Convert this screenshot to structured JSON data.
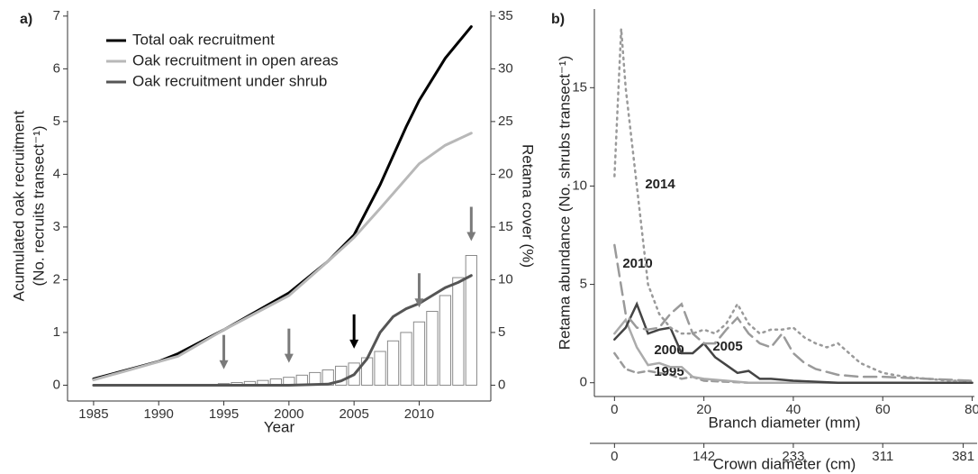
{
  "chart_data": [
    {
      "type": "line",
      "panel_label": "a)",
      "xlabel": "Year",
      "ylabel": [
        "Acumulated oak recruitment",
        "(No. recruits transect⁻¹)"
      ],
      "y2label": "Retama cover (%)",
      "xlim": [
        1983,
        2015.5
      ],
      "xticks": [
        1985,
        1990,
        1995,
        2000,
        2005,
        2010
      ],
      "ylim": [
        -0.3,
        7.1
      ],
      "yticks": [
        0,
        1,
        2,
        3,
        4,
        5,
        6,
        7
      ],
      "y2lim": [
        -1.5,
        35.5
      ],
      "y2ticks": [
        0,
        5,
        10,
        15,
        20,
        25,
        30,
        35
      ],
      "legend": "upper left",
      "series": [
        {
          "name": "Total oak recruitment",
          "color": "#000000",
          "x": [
            1985,
            1990,
            1991.5,
            1995,
            2000,
            2003,
            2005,
            2007,
            2009,
            2010,
            2012,
            2014
          ],
          "values": [
            0.12,
            0.45,
            0.6,
            1.05,
            1.75,
            2.35,
            2.85,
            3.8,
            4.9,
            5.4,
            6.2,
            6.8
          ]
        },
        {
          "name": "Oak recruitment in open areas",
          "color": "#b8b8b8",
          "x": [
            1985,
            1991.5,
            1995,
            2000,
            2003,
            2005,
            2007,
            2010,
            2012,
            2014
          ],
          "values": [
            0.1,
            0.55,
            1.05,
            1.7,
            2.35,
            2.8,
            3.35,
            4.2,
            4.55,
            4.78
          ]
        },
        {
          "name": "Oak recruitment under shrub",
          "color": "#555555",
          "x": [
            1985,
            2000,
            2003,
            2004,
            2005,
            2006,
            2007,
            2008,
            2009,
            2010,
            2011,
            2012,
            2013,
            2014
          ],
          "values": [
            0,
            0,
            0.02,
            0.08,
            0.2,
            0.5,
            1.0,
            1.3,
            1.45,
            1.55,
            1.7,
            1.85,
            1.95,
            2.08
          ]
        }
      ],
      "bars": {
        "axis": "y2",
        "color": "#ffffff",
        "edgecolor": "#8a8a8a",
        "x": [
          1995,
          1996,
          1997,
          1998,
          1999,
          2000,
          2001,
          2002,
          2003,
          2004,
          2005,
          2006,
          2007,
          2008,
          2009,
          2010,
          2011,
          2012,
          2013,
          2014
        ],
        "values": [
          0.15,
          0.25,
          0.35,
          0.45,
          0.6,
          0.75,
          0.95,
          1.2,
          1.45,
          1.8,
          2.1,
          2.6,
          3.2,
          4.2,
          5.0,
          6.0,
          7.0,
          8.5,
          10.2,
          12.3
        ]
      },
      "arrow_years": [
        1995,
        2000,
        2005,
        2010,
        2014
      ],
      "arrow_colors": [
        "#7a7a7a",
        "#7a7a7a",
        "#000000",
        "#7a7a7a",
        "#7a7a7a"
      ]
    },
    {
      "type": "line",
      "panel_label": "b)",
      "xlabel": "Branch diameter (mm)",
      "x2label": "Crown diameter (cm)",
      "ylabel": "Retama abundance (No. shrubs transect⁻¹)",
      "xlim": [
        -4.5,
        80.5
      ],
      "xticks": [
        0,
        20,
        40,
        60,
        80
      ],
      "x2ticks": [
        {
          "value": 0,
          "label": "0"
        },
        {
          "value": 20,
          "label": "142"
        },
        {
          "value": 40,
          "label": "233"
        },
        {
          "value": 60,
          "label": "311"
        },
        {
          "value": 78,
          "label": "381"
        }
      ],
      "ylim": [
        -0.7,
        19
      ],
      "yticks": [
        0,
        5,
        10,
        15
      ],
      "series": [
        {
          "name": "1995",
          "color": "#9a9a9a",
          "linestyle": "dashed",
          "x": [
            0,
            2.5,
            5,
            7.5,
            10,
            12.5,
            15,
            17.5,
            20,
            25,
            30,
            80
          ],
          "values": [
            1.5,
            0.7,
            0.5,
            0.6,
            0.5,
            0.4,
            0.2,
            0.3,
            0.1,
            0.05,
            0,
            0
          ]
        },
        {
          "name": "2000",
          "color": "#ababab",
          "linestyle": "solid",
          "x": [
            0,
            2.5,
            5,
            7.5,
            10,
            12.5,
            15,
            17.5,
            20,
            25,
            30,
            80
          ],
          "values": [
            2.5,
            3.2,
            1.8,
            0.9,
            1.0,
            0.8,
            0.8,
            0.3,
            0.2,
            0.1,
            0,
            0
          ]
        },
        {
          "name": "2005",
          "color": "#444444",
          "linestyle": "solid",
          "x": [
            0,
            2.5,
            5,
            7.5,
            10,
            12.5,
            15,
            17.5,
            20,
            22.5,
            25,
            27.5,
            30,
            32.5,
            35,
            40,
            45,
            50,
            60,
            80
          ],
          "values": [
            2.2,
            2.8,
            4.0,
            2.5,
            2.7,
            2.8,
            1.5,
            1.5,
            2.0,
            1.3,
            0.9,
            0.5,
            0.6,
            0.2,
            0.2,
            0.1,
            0.05,
            0,
            0,
            0
          ]
        },
        {
          "name": "2010",
          "color": "#9a9a9a",
          "linestyle": "longdash",
          "x": [
            0,
            2.5,
            5,
            7.5,
            10,
            12.5,
            15,
            17.5,
            20,
            22.5,
            25,
            27.5,
            30,
            32.5,
            35,
            37.5,
            40,
            42.5,
            45,
            50,
            55,
            60,
            70,
            80
          ],
          "values": [
            7.0,
            3.5,
            2.8,
            2.7,
            2.8,
            3.5,
            4.0,
            2.5,
            2.0,
            2.0,
            2.7,
            3.3,
            2.5,
            2.0,
            1.8,
            2.5,
            1.5,
            1.0,
            0.7,
            0.4,
            0.3,
            0.3,
            0.2,
            0.1
          ]
        },
        {
          "name": "2014",
          "color": "#9a9a9a",
          "linestyle": "dotted",
          "x": [
            0,
            1.5,
            2.5,
            5,
            7.5,
            10,
            12.5,
            15,
            17.5,
            20,
            22.5,
            25,
            27.5,
            30,
            32.5,
            35,
            37.5,
            40,
            42.5,
            45,
            47.5,
            50,
            55,
            60,
            65,
            70,
            75,
            80
          ],
          "values": [
            10.5,
            18.0,
            15.0,
            10.0,
            5.0,
            3.5,
            2.8,
            2.5,
            2.5,
            2.7,
            2.5,
            3.0,
            4.0,
            3.0,
            2.5,
            2.7,
            2.7,
            2.8,
            2.3,
            2.0,
            1.8,
            2.0,
            1.0,
            0.5,
            0.3,
            0.2,
            0.1,
            0.1
          ]
        }
      ]
    }
  ]
}
